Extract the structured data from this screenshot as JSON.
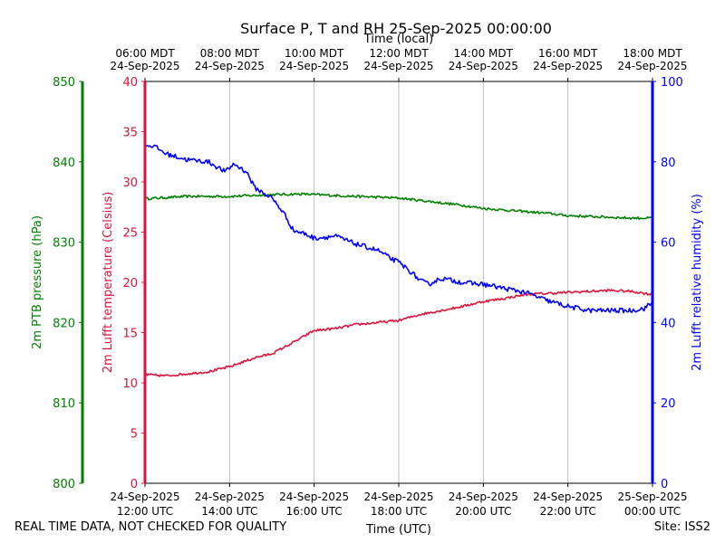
{
  "chart_data": {
    "type": "line",
    "title": "Surface P, T and RH 25-Sep-2025 00:00:00",
    "top_axis_label": "Time (local)",
    "top_ticks": [
      {
        "line1": "06:00 MDT",
        "line2": "24-Sep-2025"
      },
      {
        "line1": "08:00 MDT",
        "line2": "24-Sep-2025"
      },
      {
        "line1": "10:00 MDT",
        "line2": "24-Sep-2025"
      },
      {
        "line1": "12:00 MDT",
        "line2": "24-Sep-2025"
      },
      {
        "line1": "14:00 MDT",
        "line2": "24-Sep-2025"
      },
      {
        "line1": "16:00 MDT",
        "line2": "24-Sep-2025"
      },
      {
        "line1": "18:00 MDT",
        "line2": "24-Sep-2025"
      }
    ],
    "bottom_ticks": [
      {
        "line1": "24-Sep-2025",
        "line2": "12:00 UTC"
      },
      {
        "line1": "24-Sep-2025",
        "line2": "14:00 UTC"
      },
      {
        "line1": "24-Sep-2025",
        "line2": "16:00 UTC"
      },
      {
        "line1": "24-Sep-2025",
        "line2": "18:00 UTC"
      },
      {
        "line1": "24-Sep-2025",
        "line2": "20:00 UTC"
      },
      {
        "line1": "24-Sep-2025",
        "line2": "22:00 UTC"
      },
      {
        "line1": "25-Sep-2025",
        "line2": "00:00 UTC"
      }
    ],
    "xlabel": "Time (UTC)",
    "xlim": [
      12,
      24
    ],
    "axes": {
      "pressure": {
        "label": "2m PTB pressure (hPa)",
        "ylim": [
          800,
          850
        ],
        "ticks": [
          800,
          810,
          820,
          830,
          840,
          850
        ],
        "color": "#008000"
      },
      "temperature": {
        "label": "2m Lufft temperature (Celsius)",
        "ylim": [
          0,
          40
        ],
        "ticks": [
          0,
          5,
          10,
          15,
          20,
          25,
          30,
          35,
          40
        ],
        "color": "#dc143c"
      },
      "humidity": {
        "label": "2m Lufft relative humidity (%)",
        "ylim": [
          0,
          100
        ],
        "ticks": [
          0,
          20,
          40,
          60,
          80,
          100
        ],
        "color": "#0000ff"
      }
    },
    "series": [
      {
        "name": "2m PTB pressure",
        "axis": "pressure",
        "color": "#008000",
        "x": [
          12.0,
          13.0,
          14.0,
          15.0,
          15.7,
          16.5,
          17.0,
          17.5,
          18.0,
          18.5,
          19.0,
          19.5,
          20.0,
          20.5,
          21.0,
          21.5,
          22.0,
          22.5,
          23.0,
          23.5,
          24.0
        ],
        "y": [
          835.4,
          835.7,
          835.7,
          835.9,
          836.0,
          835.8,
          835.7,
          835.6,
          835.5,
          835.2,
          834.9,
          834.6,
          834.2,
          834.0,
          833.8,
          833.6,
          833.3,
          833.2,
          833.1,
          833.0,
          833.0
        ],
        "noise": 0.15
      },
      {
        "name": "2m Lufft temperature",
        "axis": "temperature",
        "color": "#dc143c",
        "x": [
          12.0,
          12.05,
          12.5,
          13.0,
          13.5,
          14.0,
          14.4,
          14.6,
          15.0,
          15.5,
          16.0,
          16.5,
          17.0,
          17.5,
          18.0,
          18.5,
          19.0,
          19.5,
          20.0,
          20.5,
          21.0,
          21.5,
          22.0,
          22.5,
          23.0,
          23.5,
          24.0
        ],
        "y": [
          11.0,
          10.8,
          10.7,
          10.9,
          11.1,
          11.6,
          12.2,
          12.5,
          12.9,
          14.0,
          15.2,
          15.4,
          15.8,
          16.0,
          16.2,
          16.8,
          17.2,
          17.6,
          18.1,
          18.4,
          18.8,
          18.9,
          19.0,
          19.1,
          19.2,
          19.1,
          18.8
        ],
        "noise": 0.12
      },
      {
        "name": "2m Lufft relative humidity",
        "axis": "humidity",
        "color": "#0000ff",
        "x": [
          12.0,
          12.2,
          12.5,
          13.0,
          13.5,
          13.9,
          14.1,
          14.4,
          14.6,
          15.0,
          15.3,
          15.5,
          15.8,
          16.0,
          16.5,
          17.0,
          17.5,
          17.8,
          18.0,
          18.3,
          18.5,
          18.7,
          19.0,
          19.5,
          20.0,
          20.5,
          21.0,
          21.5,
          22.0,
          22.5,
          23.0,
          23.5,
          23.8,
          24.0
        ],
        "y": [
          84.0,
          84.0,
          82.0,
          80.5,
          80.0,
          77.5,
          79.5,
          77.5,
          73.5,
          71.0,
          67.0,
          63.0,
          62.0,
          61.0,
          61.5,
          59.5,
          58.0,
          56.0,
          55.0,
          52.5,
          50.5,
          49.5,
          51.0,
          50.0,
          49.5,
          48.5,
          47.5,
          45.5,
          44.0,
          43.0,
          43.0,
          43.0,
          43.5,
          45.0
        ],
        "noise": 0.6
      }
    ]
  },
  "footer": {
    "quality_note": "REAL TIME DATA, NOT CHECKED FOR QUALITY",
    "site": "Site: ISS2"
  }
}
